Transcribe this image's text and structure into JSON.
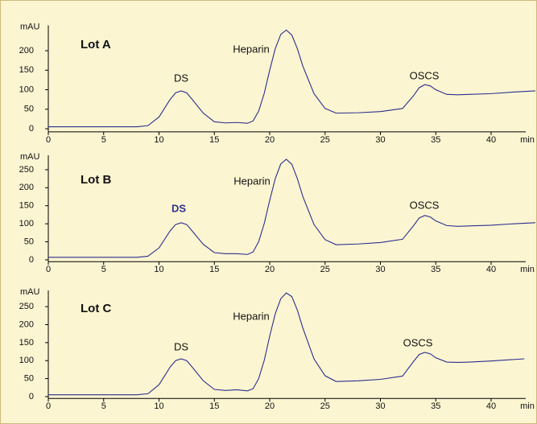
{
  "chart_data": [
    {
      "type": "line",
      "title": "Lot A",
      "annotations": [
        "DS",
        "Heparin",
        "OSCS"
      ],
      "x_label": "min",
      "y_label": "mAU",
      "color": "#2b2f8c",
      "x": [
        0,
        2,
        4,
        6,
        8,
        9,
        10,
        11,
        11.5,
        12,
        12.5,
        13,
        14,
        15,
        16,
        17,
        18,
        18.5,
        19,
        19.5,
        20,
        20.5,
        21,
        21.5,
        22,
        22.5,
        23,
        24,
        25,
        26,
        28,
        30,
        32,
        33,
        33.5,
        34,
        34.5,
        35,
        36,
        37,
        38,
        40,
        42,
        44
      ],
      "values": [
        5,
        5,
        5,
        5,
        5,
        8,
        30,
        75,
        92,
        97,
        92,
        75,
        40,
        18,
        15,
        16,
        14,
        20,
        45,
        90,
        150,
        205,
        242,
        253,
        240,
        205,
        160,
        90,
        52,
        40,
        41,
        44,
        52,
        85,
        105,
        113,
        110,
        100,
        88,
        87,
        88,
        90,
        94,
        97
      ],
      "xlim": [
        0,
        44
      ],
      "xticks": [
        0,
        5,
        10,
        15,
        20,
        25,
        30,
        35,
        40
      ],
      "ylim": [
        -8,
        265
      ],
      "yticks": [
        0,
        50,
        100,
        150,
        200
      ]
    },
    {
      "type": "line",
      "title": "Lot B",
      "annotations": [
        "DS",
        "Heparin",
        "OSCS"
      ],
      "x_label": "min",
      "y_label": "mAU",
      "color": "#2b2f8c",
      "x": [
        0,
        2,
        4,
        6,
        8,
        9,
        10,
        11,
        11.5,
        12,
        12.5,
        13,
        14,
        15,
        16,
        17,
        18,
        18.5,
        19,
        19.5,
        20,
        20.5,
        21,
        21.5,
        22,
        22.5,
        23,
        24,
        25,
        26,
        28,
        30,
        32,
        33,
        33.5,
        34,
        34.5,
        35,
        36,
        37,
        38,
        40,
        42,
        44
      ],
      "values": [
        7,
        7,
        7,
        7,
        7,
        10,
        33,
        80,
        98,
        103,
        98,
        80,
        43,
        20,
        17,
        17,
        15,
        22,
        50,
        100,
        165,
        225,
        266,
        279,
        265,
        225,
        175,
        98,
        56,
        42,
        44,
        48,
        57,
        95,
        116,
        123,
        119,
        108,
        95,
        93,
        94,
        96,
        100,
        103
      ],
      "xlim": [
        0,
        44
      ],
      "xticks": [
        0,
        5,
        10,
        15,
        20,
        25,
        30,
        35,
        40
      ],
      "ylim": [
        -5,
        290
      ],
      "yticks": [
        0,
        50,
        100,
        150,
        200,
        250
      ]
    },
    {
      "type": "line",
      "title": "Lot C",
      "annotations": [
        "DS",
        "Heparin",
        "OSCS"
      ],
      "x_label": "min",
      "y_label": "mAU",
      "color": "#2b2f8c",
      "x": [
        0,
        2,
        4,
        6,
        8,
        9,
        10,
        11,
        11.5,
        12,
        12.5,
        13,
        14,
        15,
        16,
        17,
        18,
        18.5,
        19,
        19.5,
        20,
        20.5,
        21,
        21.5,
        22,
        22.5,
        23,
        24,
        25,
        26,
        28,
        30,
        32,
        33,
        33.5,
        34,
        34.5,
        35,
        36,
        37,
        38,
        40,
        42,
        43
      ],
      "values": [
        5,
        5,
        5,
        5,
        5,
        8,
        33,
        82,
        100,
        105,
        100,
        82,
        44,
        20,
        17,
        19,
        16,
        22,
        50,
        100,
        168,
        230,
        272,
        288,
        278,
        240,
        190,
        105,
        58,
        42,
        44,
        48,
        57,
        98,
        117,
        123,
        119,
        108,
        96,
        95,
        96,
        99,
        103,
        105
      ],
      "xlim": [
        0,
        44
      ],
      "xticks": [
        0,
        5,
        10,
        15,
        20,
        25,
        30,
        35,
        40
      ],
      "ylim": [
        -5,
        295
      ],
      "yticks": [
        0,
        50,
        100,
        150,
        200,
        250
      ]
    }
  ]
}
